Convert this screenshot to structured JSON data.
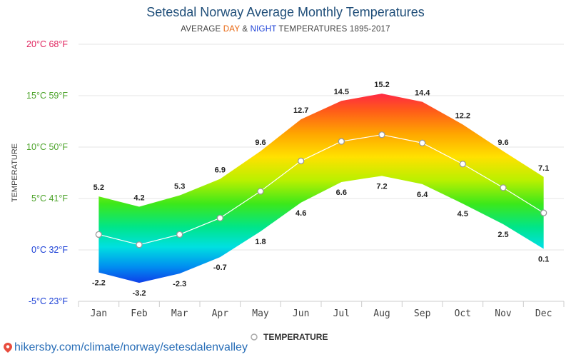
{
  "chart_data": {
    "type": "area",
    "title": "Setesdal Norway Average Monthly Temperatures",
    "subtitle": {
      "prefix": "AVERAGE ",
      "day": "DAY",
      "amp": " & ",
      "night": "NIGHT",
      "suffix": " TEMPERATURES 1895-2017"
    },
    "ylabel": "TEMPERATURE",
    "ylim": [
      -5,
      20
    ],
    "y_ticks": [
      {
        "value": 20,
        "label": "20°C 68°F",
        "color": "#e0245e"
      },
      {
        "value": 15,
        "label": "15°C 59°F",
        "color": "#4ca32a"
      },
      {
        "value": 10,
        "label": "10°C 50°F",
        "color": "#4ca32a"
      },
      {
        "value": 5,
        "label": "5°C 41°F",
        "color": "#4ca32a"
      },
      {
        "value": 0,
        "label": "0°C 32°F",
        "color": "#1a3fd6"
      },
      {
        "value": -5,
        "label": "-5°C 23°F",
        "color": "#1a3fd6"
      }
    ],
    "categories": [
      "Jan",
      "Feb",
      "Mar",
      "Apr",
      "May",
      "Jun",
      "Jul",
      "Aug",
      "Sep",
      "Oct",
      "Nov",
      "Dec"
    ],
    "day": [
      5.2,
      4.2,
      5.3,
      6.9,
      9.6,
      12.7,
      14.5,
      15.2,
      14.4,
      12.2,
      9.6,
      7.1
    ],
    "night": [
      -2.2,
      -3.2,
      -2.3,
      -0.7,
      1.8,
      4.6,
      6.6,
      7.2,
      6.4,
      4.5,
      2.5,
      0.1
    ],
    "legend": {
      "label": "TEMPERATURE",
      "position": "bottom"
    },
    "grid": true
  },
  "footer": {
    "url": "hikersby.com/climate/norway/setesdalenvalley",
    "pin_color": "#e84c3d"
  }
}
